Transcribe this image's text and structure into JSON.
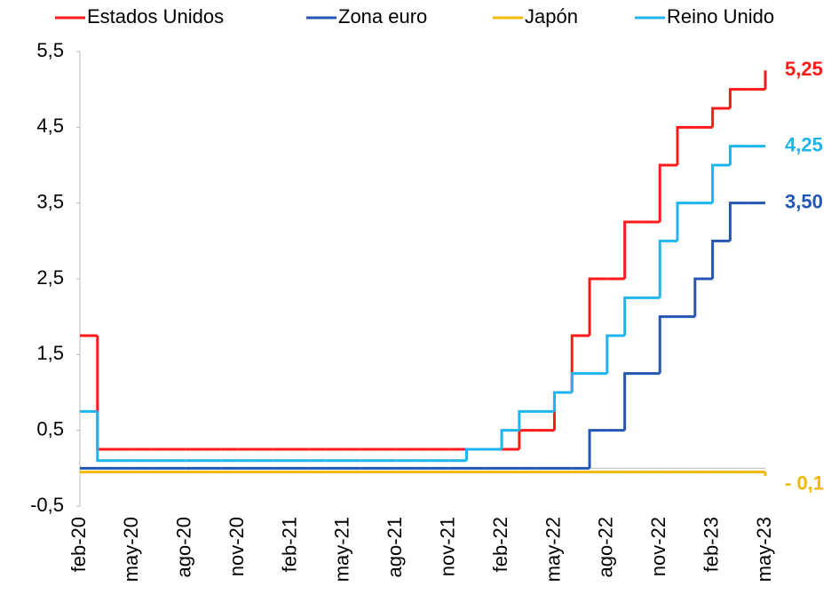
{
  "chart_data": {
    "type": "step",
    "categories": [
      "feb-20",
      null,
      null,
      "may-20",
      null,
      null,
      "ago-20",
      null,
      null,
      "nov-20",
      null,
      null,
      "feb-21",
      null,
      null,
      "may-21",
      null,
      null,
      "ago-21",
      null,
      null,
      "nov-21",
      null,
      null,
      "feb-22",
      null,
      null,
      "may-22",
      null,
      null,
      "ago-22",
      null,
      null,
      "nov-22",
      null,
      null,
      "feb-23",
      null,
      null,
      "may-23"
    ],
    "series": [
      {
        "name": "Estados Unidos",
        "color": "#ff1a1a",
        "values": [
          1.75,
          0.25,
          0.25,
          0.25,
          0.25,
          0.25,
          0.25,
          0.25,
          0.25,
          0.25,
          0.25,
          0.25,
          0.25,
          0.25,
          0.25,
          0.25,
          0.25,
          0.25,
          0.25,
          0.25,
          0.25,
          0.25,
          0.25,
          0.25,
          0.25,
          0.5,
          0.5,
          1.0,
          1.75,
          2.5,
          2.5,
          3.25,
          3.25,
          4.0,
          4.5,
          4.5,
          4.75,
          5.0,
          5.0,
          5.25
        ],
        "value_labels": [
          null,
          null,
          null,
          null,
          null,
          null,
          null,
          null,
          null,
          null,
          null,
          null,
          null,
          null,
          null,
          null,
          null,
          null,
          null,
          null,
          null,
          null,
          null,
          null,
          null,
          null,
          null,
          null,
          null,
          null,
          null,
          null,
          null,
          null,
          null,
          null,
          null,
          null,
          null,
          "5,25"
        ]
      },
      {
        "name": "Zona euro",
        "color": "#2456b3",
        "values": [
          0,
          0,
          0,
          0,
          0,
          0,
          0,
          0,
          0,
          0,
          0,
          0,
          0,
          0,
          0,
          0,
          0,
          0,
          0,
          0,
          0,
          0,
          0,
          0,
          0,
          0,
          0,
          0,
          0,
          0.5,
          0.5,
          1.25,
          1.25,
          2.0,
          2.0,
          2.5,
          3.0,
          3.5,
          3.5,
          3.5
        ],
        "value_labels": [
          null,
          null,
          null,
          null,
          null,
          null,
          null,
          null,
          null,
          null,
          null,
          null,
          null,
          null,
          null,
          null,
          null,
          null,
          null,
          null,
          null,
          null,
          null,
          null,
          null,
          null,
          null,
          null,
          null,
          null,
          null,
          null,
          null,
          null,
          null,
          null,
          null,
          null,
          null,
          "3,50"
        ]
      },
      {
        "name": "Japón",
        "color": "#f5b800",
        "values": [
          -0.05,
          -0.05,
          -0.05,
          -0.05,
          -0.05,
          -0.05,
          -0.05,
          -0.05,
          -0.05,
          -0.05,
          -0.05,
          -0.05,
          -0.05,
          -0.05,
          -0.05,
          -0.05,
          -0.05,
          -0.05,
          -0.05,
          -0.05,
          -0.05,
          -0.05,
          -0.05,
          -0.05,
          -0.05,
          -0.05,
          -0.05,
          -0.05,
          -0.05,
          -0.05,
          -0.05,
          -0.05,
          -0.05,
          -0.05,
          -0.05,
          -0.05,
          -0.05,
          -0.05,
          -0.05,
          -0.1
        ],
        "value_labels": [
          null,
          null,
          null,
          null,
          null,
          null,
          null,
          null,
          null,
          null,
          null,
          null,
          null,
          null,
          null,
          null,
          null,
          null,
          null,
          null,
          null,
          null,
          null,
          null,
          null,
          null,
          null,
          null,
          null,
          null,
          null,
          null,
          null,
          null,
          null,
          null,
          null,
          null,
          null,
          "- 0,1"
        ]
      },
      {
        "name": "Reino Unido",
        "color": "#1fb4ee",
        "values": [
          0.75,
          0.1,
          0.1,
          0.1,
          0.1,
          0.1,
          0.1,
          0.1,
          0.1,
          0.1,
          0.1,
          0.1,
          0.1,
          0.1,
          0.1,
          0.1,
          0.1,
          0.1,
          0.1,
          0.1,
          0.1,
          0.1,
          0.25,
          0.25,
          0.5,
          0.75,
          0.75,
          1.0,
          1.25,
          1.25,
          1.75,
          2.25,
          2.25,
          3.0,
          3.5,
          3.5,
          4.0,
          4.25,
          4.25,
          4.25
        ],
        "value_labels": [
          null,
          null,
          null,
          null,
          null,
          null,
          null,
          null,
          null,
          null,
          null,
          null,
          null,
          null,
          null,
          null,
          null,
          null,
          null,
          null,
          null,
          null,
          null,
          null,
          null,
          null,
          null,
          null,
          null,
          null,
          null,
          null,
          null,
          null,
          null,
          null,
          null,
          null,
          null,
          "4,25"
        ]
      }
    ],
    "ylim": [
      -0.5,
      5.5
    ],
    "yticks": [
      {
        "value": -0.5,
        "label": "-0,5"
      },
      {
        "value": 0.5,
        "label": "0,5"
      },
      {
        "value": 1.5,
        "label": "1,5"
      },
      {
        "value": 2.5,
        "label": "2,5"
      },
      {
        "value": 3.5,
        "label": "3,5"
      },
      {
        "value": 4.5,
        "label": "4,5"
      },
      {
        "value": 5.5,
        "label": "5,5"
      }
    ],
    "grid": false
  }
}
